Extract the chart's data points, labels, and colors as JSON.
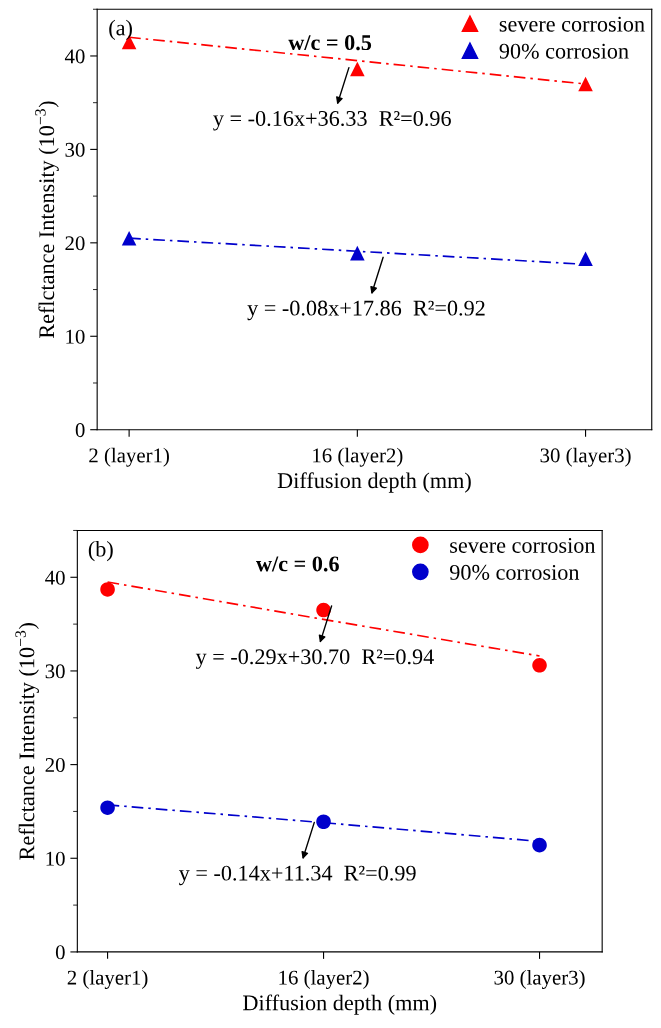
{
  "chart_data": [
    {
      "type": "scatter",
      "xlabel": "Diffusion depth (mm)",
      "ylabel": "Reflctance Intensity (10$^{−3}$)",
      "categories": [
        "2 (layer1)",
        "16 (layer2)",
        "30 (layer3)"
      ],
      "ylim": [
        0,
        45
      ],
      "yticks": [
        0,
        10,
        20,
        30,
        40
      ],
      "marker": "triangle",
      "legend": "top right",
      "grid": false,
      "series": [
        {
          "name": "severe corrosion",
          "color": "#ff0000",
          "values": [
            41.5,
            38.6,
            37.0
          ]
        },
        {
          "name": "90% corrosion",
          "color": "#0000cc",
          "values": [
            20.5,
            18.9,
            18.3
          ]
        },
        {
          "type": "line",
          "marker": "none",
          "color": "#ff0000",
          "line_style": "dashed",
          "values": [
            42.0,
            39.5,
            37.0
          ]
        },
        {
          "type": "line",
          "marker": "none",
          "color": "#0000cc",
          "line_style": "dashed",
          "values": [
            20.5,
            19.1,
            17.7
          ]
        }
      ],
      "annotations": [
        "(a)",
        "w/c = 0.5",
        "y = -0.16x+36.33  R²=0.96",
        "y = -0.08x+17.86  R²=0.92"
      ]
    },
    {
      "type": "scatter",
      "xlabel": "Diffusion depth (mm)",
      "ylabel": "Reflctance Intensity (10$^{−3}$)",
      "categories": [
        "2 (layer1)",
        "16 (layer2)",
        "30 (layer3)"
      ],
      "ylim": [
        0,
        45
      ],
      "yticks": [
        0,
        10,
        20,
        30,
        40
      ],
      "marker": "circle",
      "legend": "top right",
      "grid": false,
      "series": [
        {
          "name": "severe corrosion",
          "color": "#ff0000",
          "values": [
            38.7,
            36.5,
            30.6
          ]
        },
        {
          "name": "90% corrosion",
          "color": "#0000cc",
          "values": [
            15.4,
            13.9,
            11.4
          ]
        },
        {
          "type": "line",
          "marker": "none",
          "color": "#ff0000",
          "line_style": "dashed",
          "values": [
            39.5,
            35.5,
            31.6
          ]
        },
        {
          "type": "line",
          "marker": "none",
          "color": "#0000cc",
          "line_style": "dashed",
          "values": [
            15.7,
            13.8,
            11.8
          ]
        }
      ],
      "annotations": [
        "(b)",
        "w/c = 0.6",
        "y = -0.29x+30.70  R²=0.94",
        "y = -0.14x+11.34  R²=0.99"
      ]
    }
  ]
}
